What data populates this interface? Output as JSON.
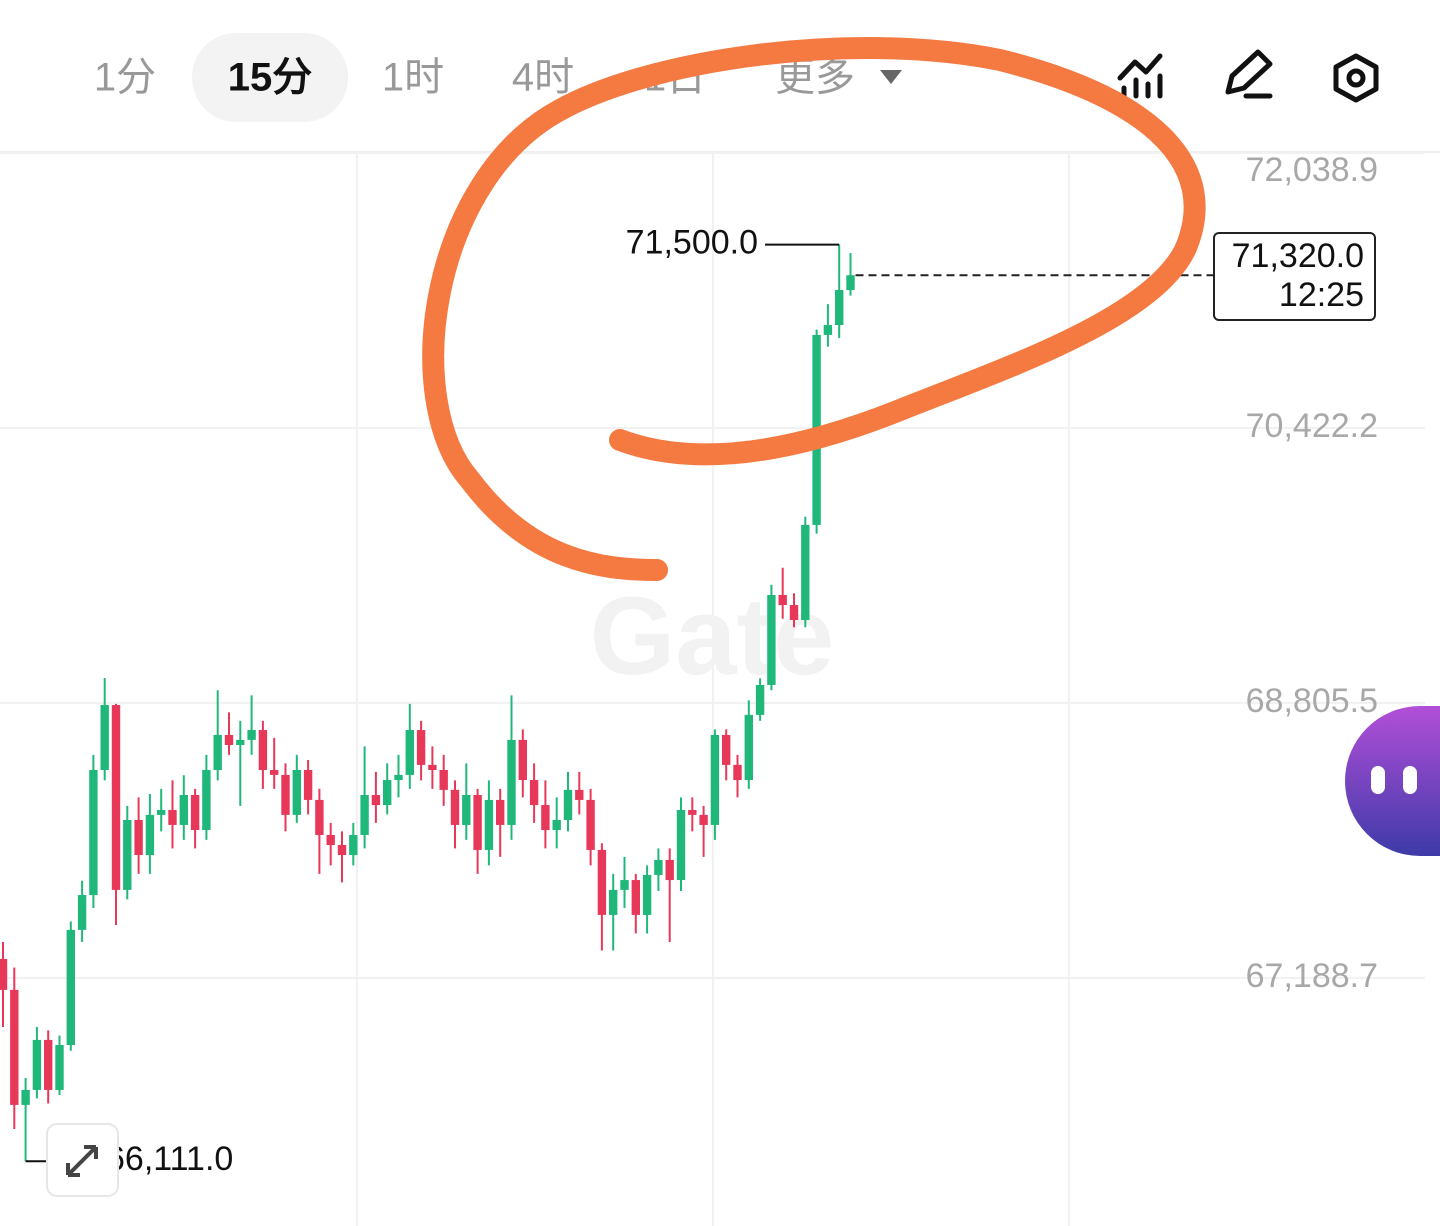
{
  "toolbar": {
    "tabs": [
      "1分",
      "15分",
      "1时",
      "4时",
      "1日",
      "更多"
    ],
    "selected": 1
  },
  "chart_data": {
    "type": "candlestick",
    "watermark": "Gate",
    "up_color": "#20b87a",
    "down_color": "#e8385a",
    "ylim": [
      65730,
      72115
    ],
    "yticks": [
      {
        "value": 72038.9,
        "label": "72,038.9"
      },
      {
        "value": 70422.2,
        "label": "70,422.2"
      },
      {
        "value": 68805.5,
        "label": "68,805.5"
      },
      {
        "value": 67188.7,
        "label": "67,188.7"
      }
    ],
    "grid": true,
    "open": [
      67300,
      67118,
      66442,
      66530,
      66824,
      66530,
      66794,
      67471,
      67676,
      68411,
      68793,
      67706,
      68117,
      67911,
      68147,
      68176,
      68088,
      68264,
      68058,
      68411,
      68617,
      68558,
      68588,
      68646,
      68411,
      68382,
      68147,
      68411,
      68235,
      68029,
      67970,
      67911,
      68029,
      68264,
      68205,
      68352,
      68382,
      68646,
      68441,
      68411,
      68294,
      68088,
      68264,
      67941,
      68235,
      68088,
      68588,
      68352,
      68205,
      68058,
      68117,
      68294,
      68235,
      67941,
      67559,
      67706,
      67764,
      67559,
      67794,
      67882,
      67764,
      68176,
      68147,
      68088,
      68617,
      68441,
      68352,
      68735,
      68911,
      69440,
      69381,
      69293,
      69852,
      70969,
      71027,
      71233
    ],
    "high": [
      67400,
      67250,
      66600,
      66900,
      66880,
      66850,
      67520,
      67760,
      68500,
      68952,
      68800,
      68200,
      68250,
      68270,
      68300,
      68350,
      68380,
      68300,
      68500,
      68880,
      68750,
      68700,
      68850,
      68700,
      68600,
      68450,
      68500,
      68470,
      68300,
      68100,
      68050,
      68100,
      68550,
      68400,
      68450,
      68500,
      68800,
      68700,
      68550,
      68500,
      68350,
      68450,
      68300,
      68350,
      68300,
      68850,
      68650,
      68450,
      68350,
      68250,
      68400,
      68400,
      68300,
      67980,
      67800,
      67900,
      67800,
      67850,
      67950,
      67950,
      68250,
      68250,
      68200,
      68650,
      68650,
      68500,
      68820,
      68950,
      69500,
      69600,
      69450,
      69900,
      71000,
      71150,
      71500,
      71450
    ],
    "low": [
      66900,
      66300,
      66111,
      66480,
      66450,
      66500,
      66760,
      67400,
      67600,
      68350,
      67500,
      67650,
      67800,
      67800,
      68050,
      67950,
      68000,
      67950,
      68000,
      68350,
      68500,
      68200,
      68500,
      68300,
      68300,
      68050,
      68100,
      68150,
      67800,
      67850,
      67750,
      67850,
      67950,
      68100,
      68150,
      68250,
      68300,
      68350,
      68300,
      68200,
      67950,
      68000,
      67800,
      67850,
      67900,
      68000,
      68250,
      68100,
      67950,
      67950,
      68050,
      68150,
      67850,
      67350,
      67350,
      67600,
      67450,
      67450,
      67700,
      67400,
      67700,
      68050,
      67900,
      68000,
      68350,
      68250,
      68300,
      68700,
      68880,
      69300,
      69250,
      69250,
      69800,
      70900,
      70950,
      71200
    ],
    "close": [
      67118,
      66442,
      66530,
      66824,
      66530,
      66794,
      67471,
      67676,
      68411,
      68793,
      67706,
      68117,
      67911,
      68147,
      68176,
      68088,
      68264,
      68058,
      68411,
      68617,
      68558,
      68588,
      68646,
      68411,
      68382,
      68147,
      68411,
      68235,
      68029,
      67970,
      67911,
      68029,
      68264,
      68205,
      68352,
      68382,
      68646,
      68441,
      68411,
      68294,
      68088,
      68264,
      67941,
      68235,
      68088,
      68588,
      68352,
      68205,
      68058,
      68117,
      68294,
      68235,
      67941,
      67559,
      67706,
      67764,
      67559,
      67794,
      67882,
      67764,
      68176,
      68147,
      68088,
      68617,
      68441,
      68352,
      68735,
      68911,
      69440,
      69381,
      69293,
      69852,
      70969,
      71027,
      71233,
      71320
    ],
    "high_label": {
      "value": 71500,
      "label": "71,500.0"
    },
    "low_label": {
      "value": 66111,
      "label": "66,111.0"
    },
    "last_price": {
      "value": 71320,
      "label": "71,320.0"
    },
    "last_time": "12:25"
  }
}
